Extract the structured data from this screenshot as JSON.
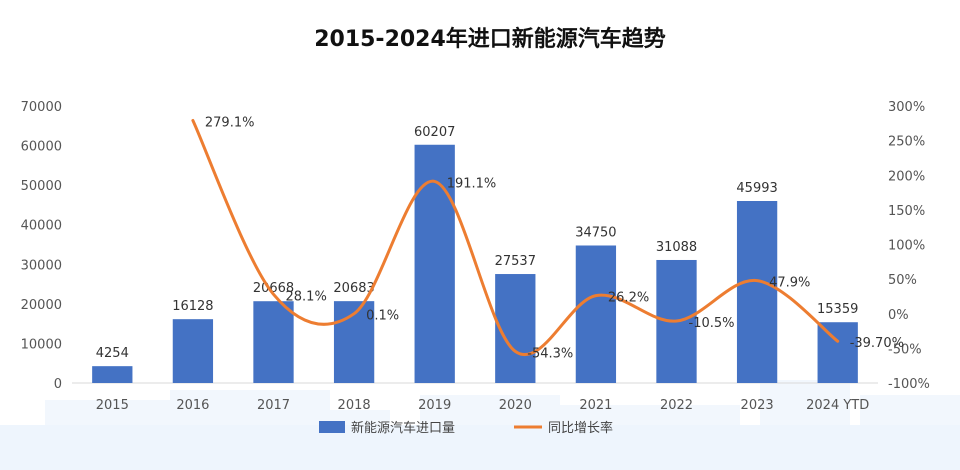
{
  "chart_data": {
    "type": "bar",
    "title": "2015-2024年进口新能源汽车趋势",
    "categories": [
      "2015",
      "2016",
      "2017",
      "2018",
      "2019",
      "2020",
      "2021",
      "2022",
      "2023",
      "2024 YTD"
    ],
    "series": [
      {
        "name": "新能源汽车进口量",
        "type": "bar",
        "axis": "left",
        "color": "#4472C4",
        "values": [
          4254,
          16128,
          20668,
          20683,
          60207,
          27537,
          34750,
          31088,
          45993,
          15359
        ],
        "labels": [
          "4254",
          "16128",
          "20668",
          "20683",
          "60207",
          "27537",
          "34750",
          "31088",
          "45993",
          "15359"
        ]
      },
      {
        "name": "同比增长率",
        "type": "line",
        "axis": "right",
        "color": "#ED7D31",
        "smooth": true,
        "values": [
          null,
          279.1,
          28.1,
          0.1,
          191.1,
          -54.3,
          26.2,
          -10.5,
          47.9,
          -39.7
        ],
        "labels": [
          "",
          "279.1%",
          "28.1%",
          "0.1%",
          "191.1%",
          "-54.3%",
          "26.2%",
          "-10.5%",
          "47.9%",
          "-39.70%"
        ]
      }
    ],
    "y_left": {
      "min": 0,
      "max": 70000,
      "ticks": [
        "0",
        "10000",
        "20000",
        "30000",
        "40000",
        "50000",
        "60000",
        "70000"
      ]
    },
    "y_right": {
      "min": -100,
      "max": 300,
      "ticks": [
        "-100%",
        "-50%",
        "0%",
        "50%",
        "100%",
        "150%",
        "200%",
        "250%",
        "300%"
      ]
    },
    "grid": false,
    "legend_position": "bottom"
  }
}
